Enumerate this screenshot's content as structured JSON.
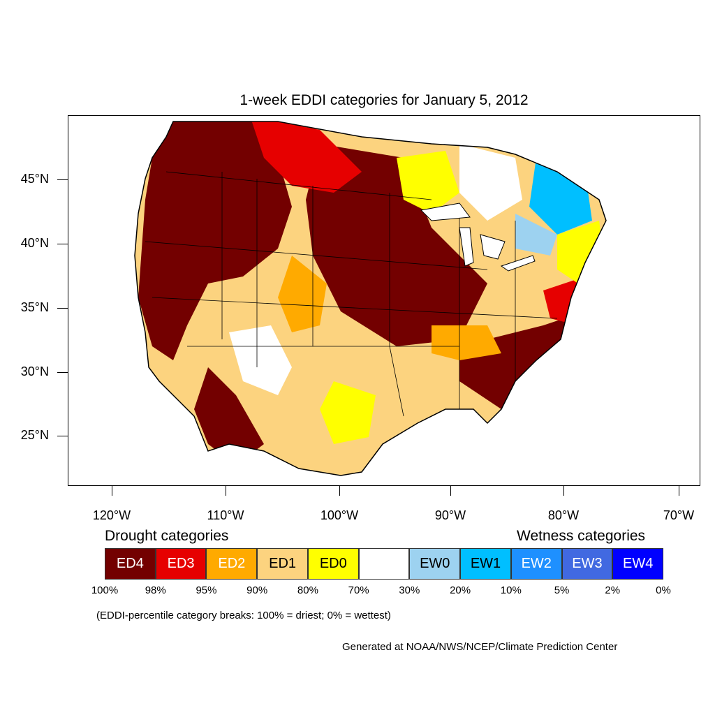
{
  "title": "1-week EDDI categories for January 5, 2012",
  "axes": {
    "y_labels": [
      "45°N",
      "40°N",
      "35°N",
      "30°N",
      "25°N"
    ],
    "x_labels": [
      "120°W",
      "110°W",
      "100°W",
      "90°W",
      "80°W",
      "70°W"
    ]
  },
  "legend": {
    "drought_heading": "Drought categories",
    "wetness_heading": "Wetness categories",
    "categories": [
      {
        "label": "ED4",
        "color": "#730000",
        "text_color": "#ffffff"
      },
      {
        "label": "ED3",
        "color": "#e60000",
        "text_color": "#ffffff"
      },
      {
        "label": "ED2",
        "color": "#ffaa00",
        "text_color": "#ffffff"
      },
      {
        "label": "ED1",
        "color": "#fcd37f",
        "text_color": "#000000"
      },
      {
        "label": "ED0",
        "color": "#ffff00",
        "text_color": "#000000"
      },
      {
        "label": "",
        "color": "#ffffff",
        "text_color": "#000000"
      },
      {
        "label": "EW0",
        "color": "#9dd2f0",
        "text_color": "#000000"
      },
      {
        "label": "EW1",
        "color": "#00bfff",
        "text_color": "#000000"
      },
      {
        "label": "EW2",
        "color": "#1e90ff",
        "text_color": "#ffffff"
      },
      {
        "label": "EW3",
        "color": "#4169e1",
        "text_color": "#ffffff"
      },
      {
        "label": "EW4",
        "color": "#0000ff",
        "text_color": "#ffffff"
      }
    ],
    "percent_breaks": [
      "100%",
      "98%",
      "95%",
      "90%",
      "80%",
      "70%",
      "30%",
      "20%",
      "10%",
      "5%",
      "2%",
      "0%"
    ]
  },
  "note": "(EDDI-percentile category breaks: 100% = driest; 0% = wettest)",
  "credit": "Generated at NOAA/NWS/NCEP/Climate Prediction Center"
}
